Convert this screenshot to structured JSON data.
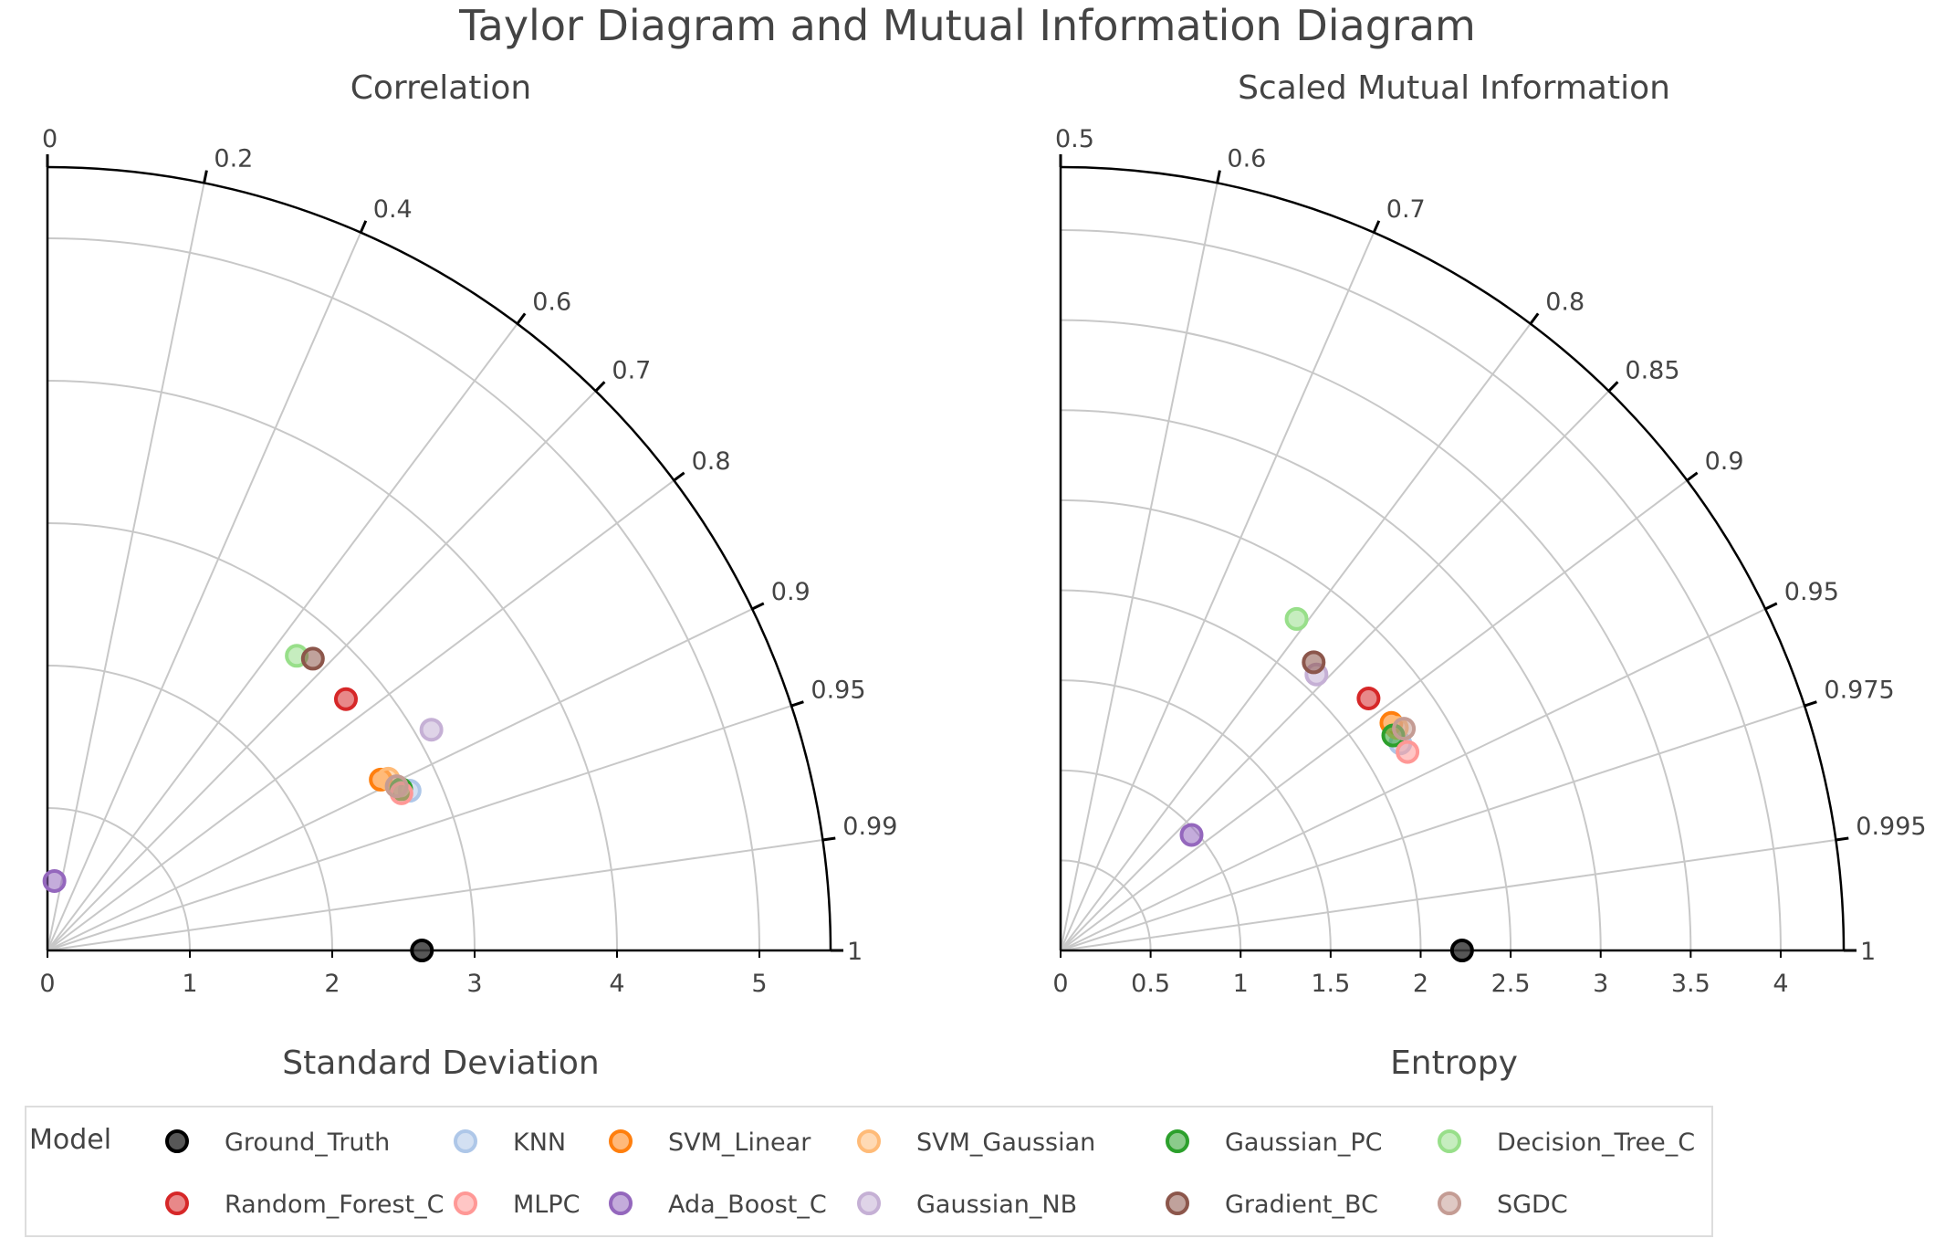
{
  "title": "Taylor Diagram and Mutual Information Diagram",
  "legend": {
    "title": "Model",
    "entries": [
      {
        "name": "Ground_Truth",
        "color": "#3a3a3a"
      },
      {
        "name": "KNN",
        "color": "#aec7e8"
      },
      {
        "name": "SVM_Linear",
        "color": "#ff7f0e"
      },
      {
        "name": "SVM_Gaussian",
        "color": "#ffbb78"
      },
      {
        "name": "Gaussian_PC",
        "color": "#2ca02c"
      },
      {
        "name": "Decision_Tree_C",
        "color": "#98df8a"
      },
      {
        "name": "Random_Forest_C",
        "color": "#d62728"
      },
      {
        "name": "MLPC",
        "color": "#ff9896"
      },
      {
        "name": "Ada_Boost_C",
        "color": "#9467bd"
      },
      {
        "name": "Gaussian_NB",
        "color": "#c5b0d5"
      },
      {
        "name": "Gradient_BC",
        "color": "#8c564b"
      },
      {
        "name": "SGDC",
        "color": "#c49c94"
      }
    ]
  },
  "chart_data": [
    {
      "type": "scatter",
      "subtype": "taylor-polar",
      "title": "Correlation",
      "xlabel": "Standard Deviation",
      "angular_axis": "Correlation",
      "radial_range": [
        0,
        5.5
      ],
      "radial_ticks": [
        0,
        1,
        2,
        3,
        4,
        5
      ],
      "radial_tick_labels": [
        "0",
        "1",
        "2",
        "3",
        "4",
        "5"
      ],
      "angular_ticks": [
        0,
        0.2,
        0.4,
        0.6,
        0.7,
        0.8,
        0.9,
        0.95,
        0.99,
        1
      ],
      "angular_tick_labels": [
        "0",
        "0.2",
        "0.4",
        "0.6",
        "0.7",
        "0.8",
        "0.9",
        "0.95",
        "0.99",
        "1"
      ],
      "grid": true,
      "points": [
        {
          "name": "Ground_Truth",
          "r": 2.63,
          "corr": 1.0
        },
        {
          "name": "KNN",
          "r": 2.78,
          "corr": 0.915
        },
        {
          "name": "SVM_Linear",
          "r": 2.63,
          "corr": 0.89
        },
        {
          "name": "SVM_Gaussian",
          "r": 2.68,
          "corr": 0.893
        },
        {
          "name": "Gaussian_PC",
          "r": 2.73,
          "corr": 0.91
        },
        {
          "name": "Decision_Tree_C",
          "r": 2.71,
          "corr": 0.646
        },
        {
          "name": "Random_Forest_C",
          "r": 2.74,
          "corr": 0.765
        },
        {
          "name": "MLPC",
          "r": 2.72,
          "corr": 0.914
        },
        {
          "name": "Ada_Boost_C",
          "r": 0.49,
          "corr": 0.1
        },
        {
          "name": "Gaussian_NB",
          "r": 3.11,
          "corr": 0.867
        },
        {
          "name": "Gradient_BC",
          "r": 2.77,
          "corr": 0.673
        },
        {
          "name": "SGDC",
          "r": 2.71,
          "corr": 0.905
        }
      ]
    },
    {
      "type": "scatter",
      "subtype": "mutual-information-polar",
      "title": "Scaled Mutual Information",
      "xlabel": "Entropy",
      "angular_axis": "Scaled Mutual Information",
      "radial_range": [
        0,
        4.35
      ],
      "radial_ticks": [
        0,
        0.5,
        1,
        1.5,
        2,
        2.5,
        3,
        3.5,
        4
      ],
      "radial_tick_labels": [
        "0",
        "0.5",
        "1",
        "1.5",
        "2",
        "2.5",
        "3",
        "3.5",
        "4"
      ],
      "angular_ticks": [
        0.5,
        0.6,
        0.7,
        0.8,
        0.85,
        0.9,
        0.95,
        0.975,
        0.995,
        1
      ],
      "angular_tick_labels": [
        "0.5",
        "0.6",
        "0.7",
        "0.8",
        "0.85",
        "0.9",
        "0.95",
        "0.975",
        "0.995",
        "1"
      ],
      "grid": true,
      "points": [
        {
          "name": "Ground_Truth",
          "r": 2.23,
          "smi": 1.0
        },
        {
          "name": "KNN",
          "r": 2.21,
          "smi": 0.927
        },
        {
          "name": "SVM_Linear",
          "r": 2.23,
          "smi": 0.912
        },
        {
          "name": "SVM_Gaussian",
          "r": 2.24,
          "smi": 0.917
        },
        {
          "name": "Gaussian_PC",
          "r": 2.2,
          "smi": 0.92
        },
        {
          "name": "Decision_Tree_C",
          "r": 2.26,
          "smi": 0.79
        },
        {
          "name": "Random_Forest_C",
          "r": 2.21,
          "smi": 0.887
        },
        {
          "name": "MLPC",
          "r": 2.22,
          "smi": 0.934
        },
        {
          "name": "Ada_Boost_C",
          "r": 0.97,
          "smi": 0.875
        },
        {
          "name": "Gaussian_NB",
          "r": 2.09,
          "smi": 0.84
        },
        {
          "name": "Gradient_BC",
          "r": 2.13,
          "smi": 0.83
        },
        {
          "name": "SGDC",
          "r": 2.27,
          "smi": 0.92
        }
      ]
    }
  ]
}
